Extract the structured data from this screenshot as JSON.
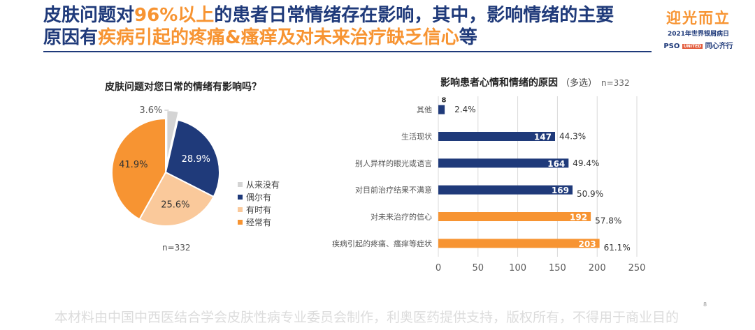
{
  "headline": {
    "line1_a": "皮肤问题对",
    "line1_hl": "96%以上",
    "line1_b": "的患者日常情绪存在影响，其中，影响情绪的主要",
    "line2_a": "原因有",
    "line2_hl": "疾病引起的疼痛&瘙痒及对未来治疗缺乏信心",
    "line2_b": "等"
  },
  "brand": {
    "title": "迎光而立",
    "subtitle": "2021年世界银屑病日",
    "pso": "PSO",
    "badge": "UNITED",
    "tagline": "同心齐行"
  },
  "footer": "本材料由中国中西医结合学会皮肤性病专业委员会制作，利奥医药提供支持，版权所有，不得用于商业目的",
  "page_number": "8",
  "colors": {
    "navy": "#1f3a7a",
    "orange": "#f79432",
    "peach": "#fac99b",
    "light_gray": "#d4d4d4"
  },
  "chart_data": [
    {
      "type": "pie",
      "title": "皮肤问题对您日常的情绪有影响吗？",
      "n_label": "n=332",
      "legend_position": "right",
      "slices": [
        {
          "name": "从来没有",
          "value": 3.6,
          "label": "3.6%",
          "color": "#d4d4d4"
        },
        {
          "name": "偶尔有",
          "value": 28.9,
          "label": "28.9%",
          "color": "#1f3a7a"
        },
        {
          "name": "有时有",
          "value": 25.6,
          "label": "25.6%",
          "color": "#fac99b"
        },
        {
          "name": "经常有",
          "value": 41.9,
          "label": "41.9%",
          "color": "#f79432"
        }
      ]
    },
    {
      "type": "bar",
      "orientation": "horizontal",
      "title": "影响患者心情和情绪的原因",
      "title_note": "（多选）",
      "n_label": "n=332",
      "xlim": [
        0,
        250
      ],
      "xticks": [
        "0",
        "50",
        "100",
        "150",
        "200",
        "250"
      ],
      "grid": true,
      "categories": [
        "其他",
        "生活现状",
        "别人异样的眼光或语言",
        "对目前治疗结果不满意",
        "对未来治疗的信心",
        "疾病引起的疼痛、瘙痒等症状"
      ],
      "values": [
        8,
        147,
        164,
        169,
        192,
        203
      ],
      "percent_labels": [
        "2.4%",
        "44.3%",
        "49.4%",
        "50.9%",
        "57.8%",
        "61.1%"
      ],
      "bar_colors": [
        "#1f3a7a",
        "#1f3a7a",
        "#1f3a7a",
        "#1f3a7a",
        "#f79432",
        "#f79432"
      ]
    }
  ]
}
